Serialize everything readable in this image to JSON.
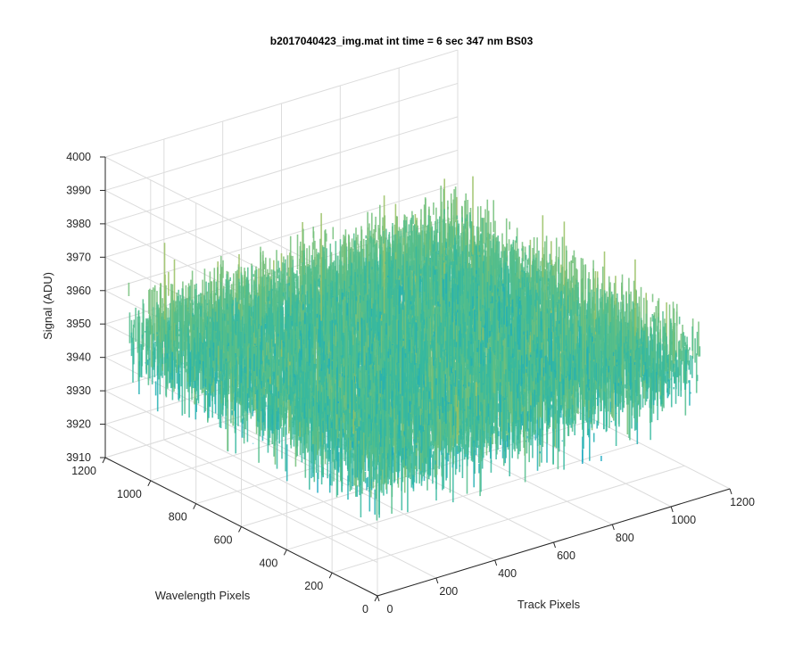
{
  "chart_data": {
    "type": "surface",
    "title": "b2017040423_img.mat int time = 6 sec  347 nm BS03",
    "xlabel": "Track Pixels",
    "ylabel": "Wavelength Pixels",
    "zlabel": "Signal (ADU)",
    "xlim": [
      0,
      1200
    ],
    "ylim": [
      0,
      1200
    ],
    "zlim": [
      3910,
      4000
    ],
    "x_ticks": [
      "0",
      "200",
      "400",
      "600",
      "800",
      "1000",
      "1200"
    ],
    "y_ticks": [
      "0",
      "200",
      "400",
      "600",
      "800",
      "1000",
      "1200"
    ],
    "z_ticks": [
      "3910",
      "3920",
      "3930",
      "3940",
      "3950",
      "3960",
      "3970",
      "3980",
      "3990",
      "4000"
    ],
    "grid": true,
    "surface": {
      "x_range": [
        1,
        1100
      ],
      "y_range": [
        1,
        1100
      ],
      "mean": 3950,
      "noise_range": [
        3915,
        3990
      ],
      "colormap": "parula"
    }
  }
}
